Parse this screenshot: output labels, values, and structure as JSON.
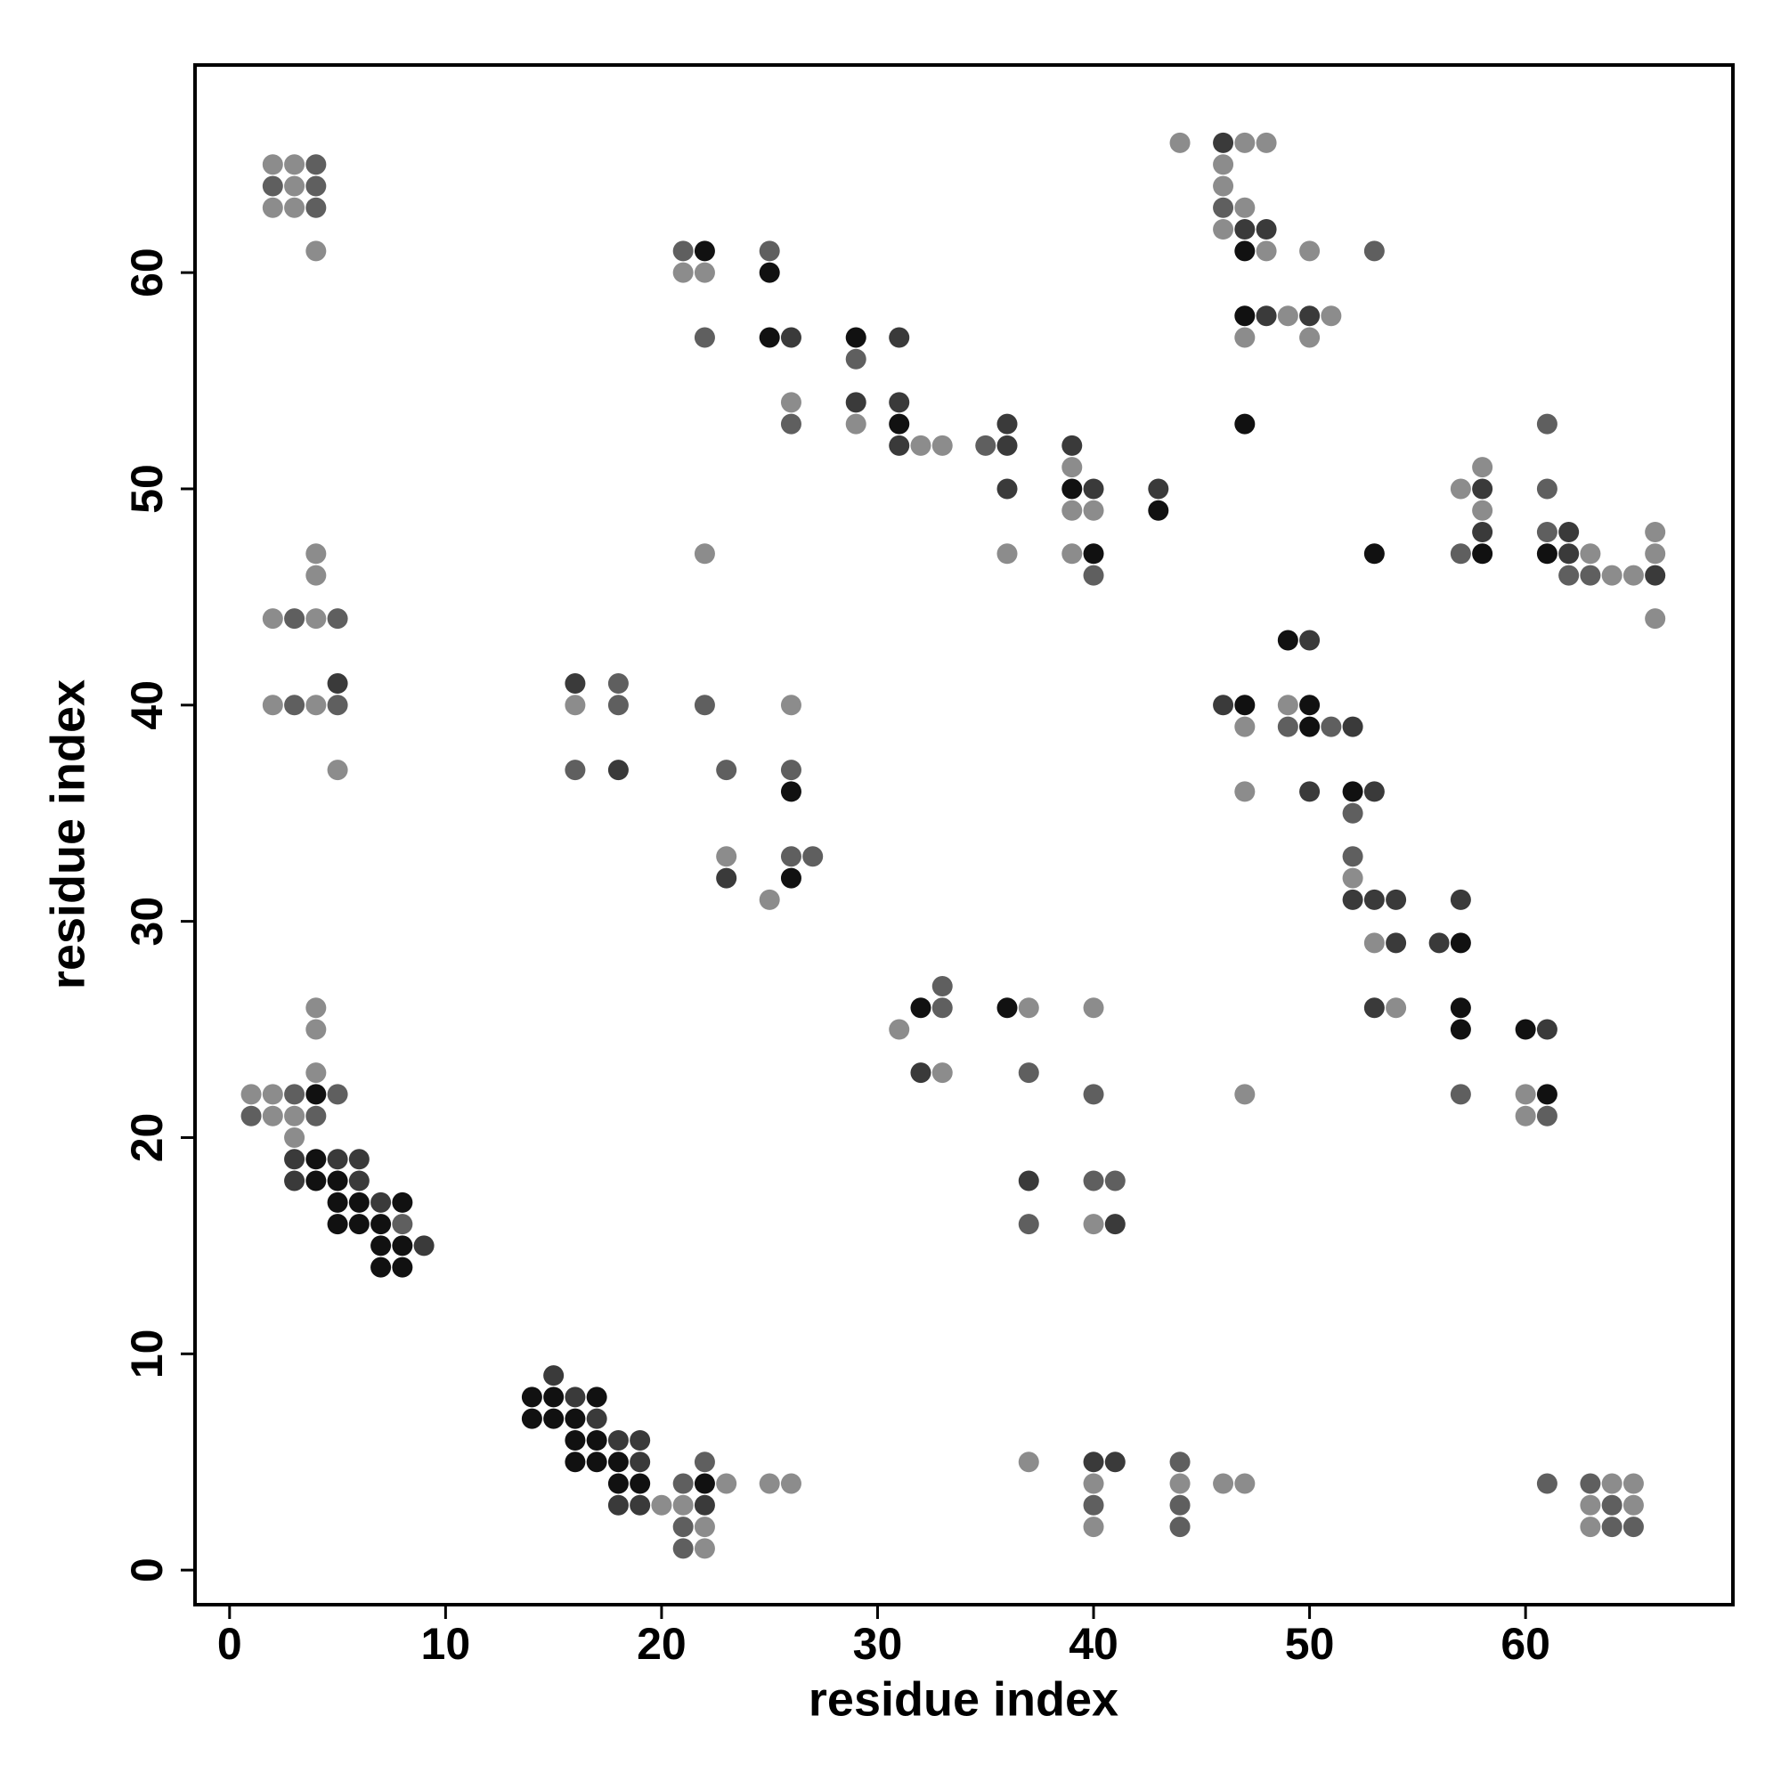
{
  "chart_data": {
    "type": "scatter",
    "xlabel": "residue index",
    "ylabel": "residue index",
    "xlim": [
      -1.6,
      69.6
    ],
    "ylim": [
      -1.6,
      69.6
    ],
    "xticks": [
      0,
      10,
      20,
      30,
      40,
      50,
      60
    ],
    "yticks": [
      0,
      10,
      20,
      30,
      40,
      50,
      60
    ],
    "series": [
      {
        "color": "#111111",
        "x": [
          4,
          4,
          4,
          5,
          5,
          6,
          8,
          5,
          6,
          7,
          7,
          8,
          7,
          8,
          14,
          15,
          17,
          14,
          15,
          16,
          16,
          17,
          16,
          17,
          18,
          18,
          19,
          22,
          26,
          26,
          22,
          25,
          25,
          29,
          31,
          39,
          43,
          40,
          47,
          47,
          47,
          53,
          58,
          61,
          49,
          47,
          50,
          50,
          52,
          57,
          57,
          57,
          60,
          61,
          32,
          36
        ],
        "values": [
          22,
          19,
          18,
          18,
          17,
          17,
          17,
          16,
          16,
          16,
          15,
          15,
          14,
          14,
          8,
          8,
          8,
          7,
          7,
          7,
          6,
          6,
          5,
          5,
          5,
          4,
          4,
          4,
          36,
          32,
          61,
          60,
          57,
          57,
          53,
          50,
          49,
          47,
          61,
          58,
          53,
          47,
          47,
          47,
          43,
          40,
          40,
          39,
          36,
          29,
          26,
          25,
          25,
          22,
          26,
          26
        ]
      },
      {
        "color": "#3a3a3a",
        "x": [
          3,
          5,
          6,
          3,
          6,
          7,
          9,
          15,
          16,
          17,
          18,
          19,
          19,
          18,
          19,
          22,
          40,
          41,
          5,
          16,
          18,
          23,
          26,
          31,
          29,
          31,
          31,
          36,
          36,
          36,
          40,
          43,
          46,
          47,
          48,
          48,
          50,
          58,
          58,
          62,
          62,
          66,
          50,
          46,
          52,
          50,
          53,
          52,
          53,
          54,
          57,
          54,
          56,
          53,
          61,
          32,
          37,
          41,
          39
        ],
        "values": [
          19,
          19,
          19,
          18,
          18,
          17,
          15,
          9,
          8,
          7,
          6,
          6,
          5,
          3,
          3,
          3,
          5,
          5,
          41,
          41,
          37,
          32,
          57,
          57,
          54,
          54,
          52,
          52,
          53,
          50,
          50,
          50,
          66,
          62,
          62,
          58,
          58,
          50,
          48,
          48,
          47,
          46,
          43,
          40,
          39,
          36,
          36,
          31,
          31,
          31,
          31,
          29,
          29,
          26,
          25,
          23,
          18,
          16,
          52
        ]
      },
      {
        "color": "#5f5f5f",
        "x": [
          4,
          2,
          4,
          4,
          3,
          5,
          3,
          5,
          3,
          5,
          1,
          4,
          8,
          22,
          21,
          21,
          21,
          40,
          44,
          44,
          44,
          61,
          63,
          64,
          64,
          65,
          18,
          18,
          22,
          16,
          23,
          26,
          26,
          27,
          21,
          25,
          22,
          29,
          26,
          35,
          40,
          46,
          53,
          61,
          61,
          57,
          62,
          63,
          61,
          49,
          51,
          52,
          52,
          57,
          61,
          33,
          33,
          37,
          40,
          40,
          41,
          37
        ],
        "values": [
          65,
          64,
          64,
          63,
          44,
          44,
          40,
          40,
          22,
          22,
          21,
          21,
          16,
          5,
          4,
          2,
          1,
          3,
          5,
          3,
          2,
          4,
          4,
          3,
          2,
          2,
          41,
          40,
          40,
          37,
          37,
          37,
          33,
          33,
          61,
          61,
          57,
          56,
          53,
          52,
          46,
          63,
          61,
          50,
          48,
          47,
          46,
          46,
          53,
          39,
          39,
          35,
          33,
          22,
          21,
          27,
          26,
          23,
          22,
          18,
          18,
          16
        ]
      },
      {
        "color": "#8c8c8c",
        "x": [
          2,
          3,
          3,
          2,
          3,
          4,
          4,
          4,
          2,
          4,
          2,
          4,
          5,
          4,
          4,
          4,
          1,
          2,
          2,
          3,
          3,
          20,
          23,
          21,
          22,
          22,
          25,
          26,
          37,
          40,
          44,
          46,
          47,
          40,
          64,
          65,
          63,
          65,
          63,
          16,
          26,
          23,
          25,
          21,
          22,
          26,
          29,
          32,
          33,
          22,
          36,
          39,
          39,
          40,
          39,
          44,
          47,
          48,
          46,
          46,
          47,
          46,
          48,
          50,
          49,
          51,
          47,
          50,
          57,
          58,
          58,
          66,
          63,
          66,
          64,
          65,
          66,
          49,
          47,
          47,
          52,
          53,
          54,
          47,
          60,
          60,
          37,
          40,
          31,
          33,
          40
        ],
        "values": [
          65,
          65,
          64,
          63,
          63,
          61,
          47,
          46,
          44,
          44,
          40,
          40,
          37,
          26,
          25,
          23,
          22,
          22,
          21,
          21,
          20,
          3,
          4,
          3,
          2,
          1,
          4,
          4,
          5,
          4,
          4,
          4,
          4,
          2,
          4,
          4,
          3,
          3,
          2,
          40,
          40,
          33,
          31,
          60,
          60,
          54,
          53,
          52,
          52,
          47,
          47,
          51,
          49,
          49,
          47,
          66,
          66,
          66,
          65,
          64,
          63,
          62,
          61,
          61,
          58,
          58,
          57,
          57,
          50,
          51,
          49,
          48,
          47,
          47,
          46,
          46,
          44,
          40,
          39,
          36,
          32,
          29,
          26,
          22,
          22,
          21,
          26,
          26,
          25,
          23,
          16
        ]
      }
    ]
  }
}
